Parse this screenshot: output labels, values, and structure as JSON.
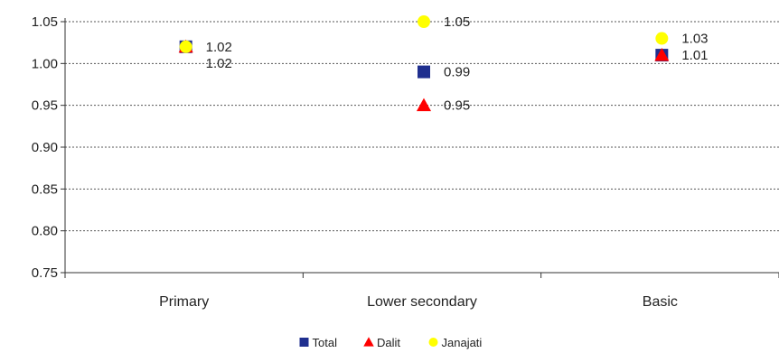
{
  "chart_data": {
    "type": "scatter",
    "categories": [
      "Primary",
      "Lower secondary",
      "Basic"
    ],
    "series": [
      {
        "name": "Total",
        "marker": "square",
        "color": "#1f2f8f",
        "values": [
          1.02,
          0.99,
          1.01
        ]
      },
      {
        "name": "Dalit",
        "marker": "triangle",
        "color": "#ff0000",
        "values": [
          1.02,
          0.95,
          1.01
        ]
      },
      {
        "name": "Janajati",
        "marker": "circle",
        "color": "#ffff00",
        "values": [
          1.02,
          1.05,
          1.03
        ]
      }
    ],
    "data_labels": [
      {
        "category": 0,
        "text": "1.02",
        "value": 1.02
      },
      {
        "category": 0,
        "text": "1.02",
        "value": 1.02
      },
      {
        "category": 1,
        "text": "1.05",
        "value": 1.05
      },
      {
        "category": 1,
        "text": "0.99",
        "value": 0.99
      },
      {
        "category": 1,
        "text": "0.95",
        "value": 0.95
      },
      {
        "category": 2,
        "text": "1.03",
        "value": 1.03
      },
      {
        "category": 2,
        "text": "1.01",
        "value": 1.01
      }
    ],
    "yticks": [
      "1.05",
      "1.00",
      "0.95",
      "0.90",
      "0.85",
      "0.80",
      "0.75"
    ],
    "ylim": [
      0.75,
      1.05
    ],
    "grid": true,
    "legend_position": "bottom",
    "title": "",
    "xlabel": "",
    "ylabel": ""
  }
}
